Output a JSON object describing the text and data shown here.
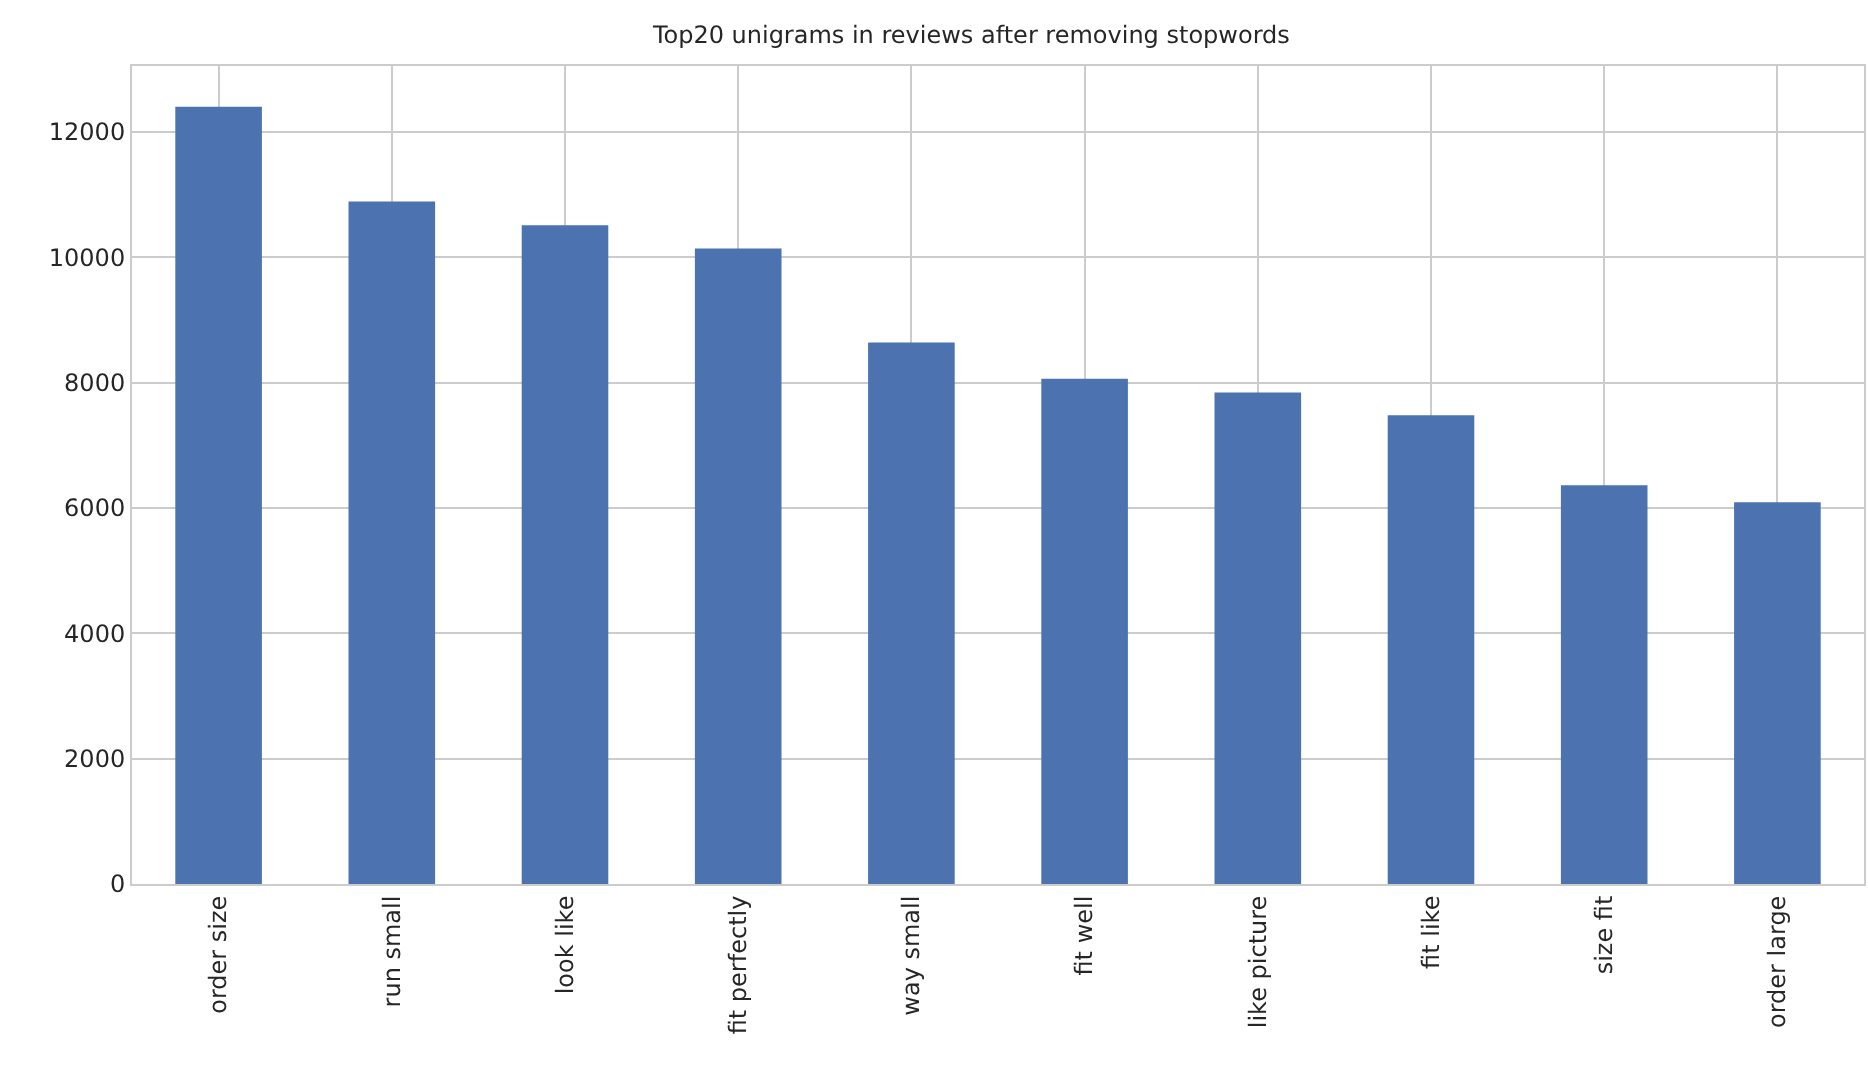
{
  "chart_data": {
    "type": "bar",
    "title": "Top20 unigrams in reviews after removing stopwords",
    "categories": [
      "order size",
      "run small",
      "look like",
      "fit perfectly",
      "way small",
      "fit well",
      "like picture",
      "fit like",
      "size fit",
      "order large"
    ],
    "values": [
      12400,
      10890,
      10510,
      10140,
      8640,
      8060,
      7840,
      7480,
      6360,
      6090
    ],
    "color": "#4c72b0",
    "ylim": [
      0,
      13050
    ],
    "yticks": [
      0,
      2000,
      4000,
      6000,
      8000,
      10000,
      12000
    ],
    "grid": true
  }
}
